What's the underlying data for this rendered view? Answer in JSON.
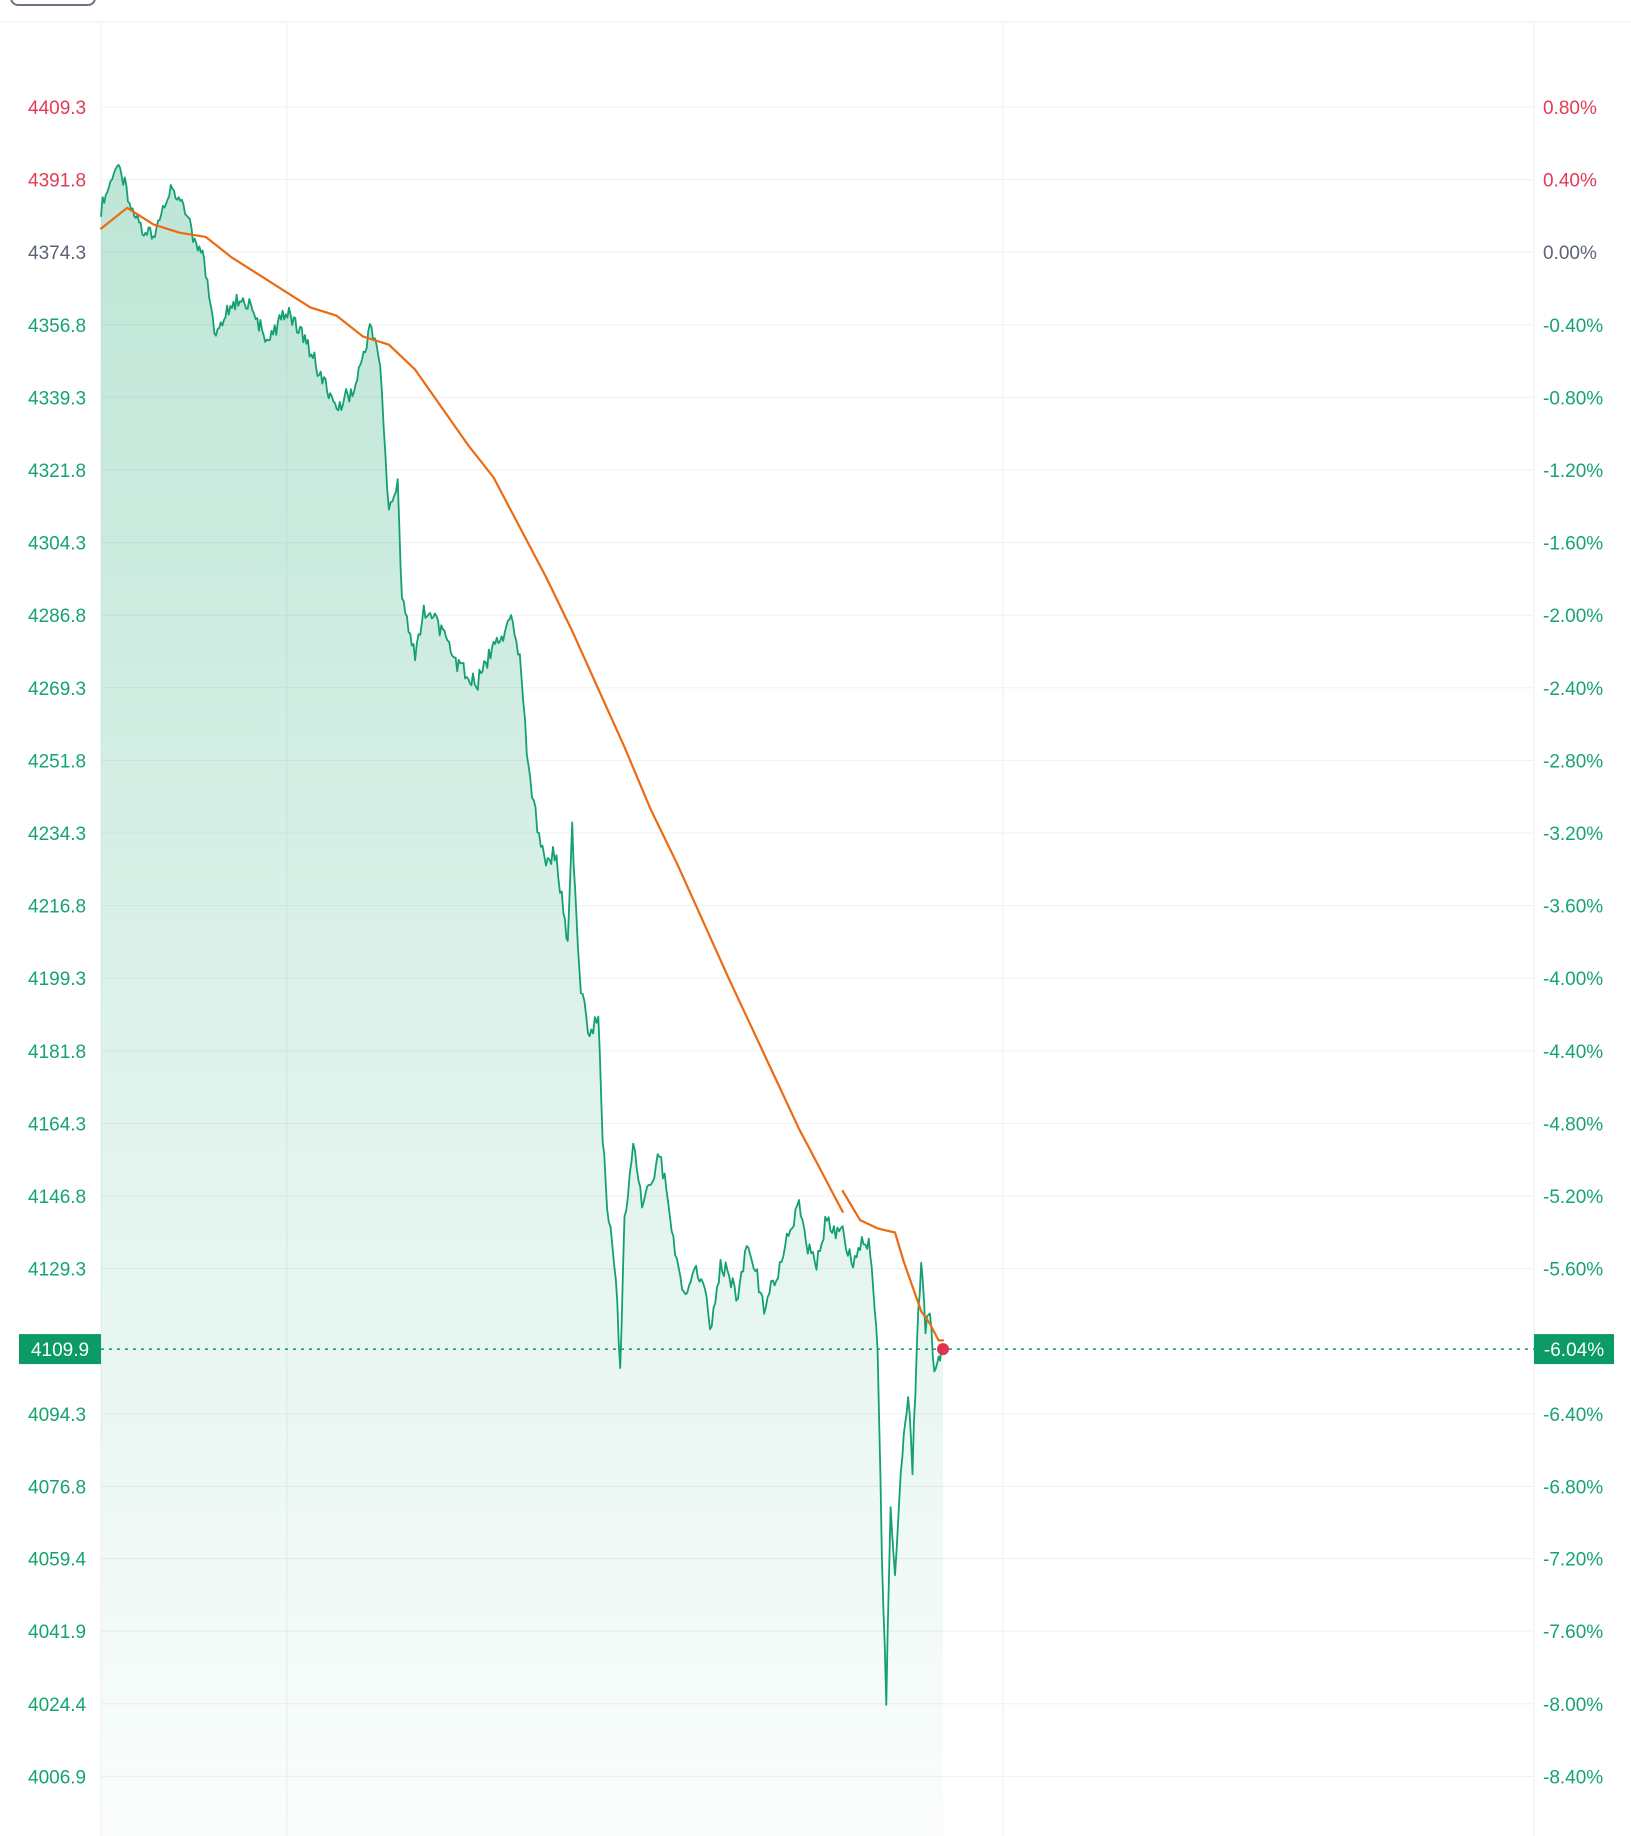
{
  "chart_data": {
    "type": "line",
    "title": "",
    "xlabel": "",
    "ylabel": "",
    "base_value": 4374.3,
    "ylim": [
      4006.9,
      4409.3
    ],
    "grid": true,
    "left_ticks": [
      "4409.3",
      "4391.8",
      "4374.3",
      "4356.8",
      "4339.3",
      "4321.8",
      "4304.3",
      "4286.8",
      "4269.3",
      "4251.8",
      "4234.3",
      "4216.8",
      "4199.3",
      "4181.8",
      "4164.3",
      "4146.8",
      "4129.3",
      "4094.3",
      "4076.8",
      "4059.4",
      "4041.9",
      "4024.4",
      "4006.9"
    ],
    "right_ticks": [
      "0.80%",
      "0.40%",
      "0.00%",
      "-0.40%",
      "-0.80%",
      "-1.20%",
      "-1.60%",
      "-2.00%",
      "-2.40%",
      "-2.80%",
      "-3.20%",
      "-3.60%",
      "-4.00%",
      "-4.40%",
      "-4.80%",
      "-5.20%",
      "-5.60%",
      "-6.40%",
      "-6.80%",
      "-7.20%",
      "-7.60%",
      "-8.00%",
      "-8.40%"
    ],
    "last_value_label": "4109.9",
    "last_change_label": "-6.04%",
    "session_fraction_ticks": [
      0.0,
      0.13,
      0.63,
      1.0
    ],
    "colors": {
      "up": "#e23b53",
      "down": "#16a46e",
      "neutral": "#5b6478",
      "price_line": "#13a072",
      "avg_line": "#ec6b12",
      "last_marker": "#e0334f",
      "grid": "#eef0f2",
      "label_box": "#0a9b66"
    },
    "series": [
      {
        "points": [
          [
            0.0,
            4385
          ],
          [
            0.02,
            4395
          ],
          [
            0.04,
            4382
          ],
          [
            0.06,
            4378
          ],
          [
            0.08,
            4390
          ],
          [
            0.1,
            4382
          ],
          [
            0.12,
            4370
          ],
          [
            0.13,
            4355
          ],
          [
            0.15,
            4362
          ],
          [
            0.17,
            4362
          ],
          [
            0.19,
            4352
          ],
          [
            0.21,
            4360
          ],
          [
            0.23,
            4355
          ],
          [
            0.25,
            4345
          ],
          [
            0.27,
            4336
          ],
          [
            0.29,
            4342
          ],
          [
            0.31,
            4356
          ],
          [
            0.32,
            4345
          ],
          [
            0.33,
            4312
          ],
          [
            0.34,
            4318
          ],
          [
            0.345,
            4290
          ],
          [
            0.36,
            4278
          ],
          [
            0.37,
            4288
          ],
          [
            0.39,
            4284
          ],
          [
            0.41,
            4275
          ],
          [
            0.43,
            4270
          ],
          [
            0.45,
            4280
          ],
          [
            0.47,
            4285
          ],
          [
            0.48,
            4275
          ],
          [
            0.49,
            4250
          ],
          [
            0.5,
            4235
          ],
          [
            0.51,
            4228
          ],
          [
            0.52,
            4230
          ],
          [
            0.53,
            4215
          ],
          [
            0.535,
            4208
          ],
          [
            0.54,
            4236
          ],
          [
            0.545,
            4212
          ],
          [
            0.55,
            4196
          ],
          [
            0.56,
            4185
          ],
          [
            0.57,
            4190
          ],
          [
            0.575,
            4160
          ],
          [
            0.58,
            4145
          ],
          [
            0.59,
            4128
          ],
          [
            0.595,
            4105
          ],
          [
            0.6,
            4140
          ],
          [
            0.61,
            4160
          ],
          [
            0.62,
            4145
          ],
          [
            0.63,
            4150
          ],
          [
            0.64,
            4158
          ],
          [
            0.65,
            4145
          ],
          [
            0.66,
            4130
          ],
          [
            0.67,
            4122
          ],
          [
            0.68,
            4130
          ],
          [
            0.69,
            4125
          ],
          [
            0.7,
            4115
          ],
          [
            0.71,
            4130
          ],
          [
            0.72,
            4128
          ],
          [
            0.73,
            4122
          ],
          [
            0.74,
            4135
          ],
          [
            0.75,
            4130
          ],
          [
            0.76,
            4120
          ],
          [
            0.77,
            4125
          ],
          [
            0.78,
            4132
          ],
          [
            0.79,
            4140
          ],
          [
            0.8,
            4145
          ],
          [
            0.81,
            4135
          ],
          [
            0.82,
            4130
          ],
          [
            0.83,
            4140
          ],
          [
            0.84,
            4138
          ],
          [
            0.85,
            4140
          ],
          [
            0.86,
            4130
          ],
          [
            0.87,
            4135
          ],
          [
            0.88,
            4136
          ],
          [
            0.885,
            4125
          ],
          [
            0.89,
            4110
          ],
          [
            0.895,
            4060
          ],
          [
            0.9,
            4025
          ],
          [
            0.905,
            4070
          ],
          [
            0.91,
            4055
          ],
          [
            0.915,
            4075
          ],
          [
            0.92,
            4090
          ],
          [
            0.925,
            4098
          ],
          [
            0.93,
            4080
          ],
          [
            0.935,
            4110
          ],
          [
            0.94,
            4132
          ],
          [
            0.945,
            4115
          ],
          [
            0.95,
            4120
          ],
          [
            0.955,
            4105
          ],
          [
            0.96,
            4108
          ],
          [
            0.965,
            4109.9
          ]
        ]
      },
      {
        "points": [
          [
            0.0,
            4380
          ],
          [
            0.03,
            4385
          ],
          [
            0.06,
            4381
          ],
          [
            0.09,
            4379
          ],
          [
            0.12,
            4378
          ],
          [
            0.15,
            4373
          ],
          [
            0.18,
            4369
          ],
          [
            0.21,
            4365
          ],
          [
            0.24,
            4361
          ],
          [
            0.27,
            4359
          ],
          [
            0.3,
            4354
          ],
          [
            0.33,
            4352
          ],
          [
            0.36,
            4346
          ],
          [
            0.39,
            4337
          ],
          [
            0.42,
            4328
          ],
          [
            0.45,
            4320
          ],
          [
            0.48,
            4308
          ],
          [
            0.51,
            4296
          ],
          [
            0.54,
            4283
          ],
          [
            0.57,
            4269
          ],
          [
            0.6,
            4255
          ],
          [
            0.63,
            4240
          ],
          [
            0.66,
            4227
          ],
          [
            0.69,
            4213
          ],
          [
            0.72,
            4199
          ],
          [
            0.74,
            4190
          ],
          [
            0.76,
            4181
          ],
          [
            0.78,
            4172
          ],
          [
            0.8,
            4163
          ],
          [
            0.82,
            4155
          ],
          [
            0.84,
            4147
          ],
          [
            0.85,
            4143
          ]
        ]
      },
      {
        "points": [
          [
            0.85,
            4148
          ],
          [
            0.87,
            4141
          ],
          [
            0.89,
            4139
          ],
          [
            0.91,
            4138
          ],
          [
            0.92,
            4131
          ],
          [
            0.94,
            4119
          ],
          [
            0.95,
            4116
          ],
          [
            0.96,
            4112
          ],
          [
            0.965,
            4112
          ]
        ]
      }
    ]
  }
}
